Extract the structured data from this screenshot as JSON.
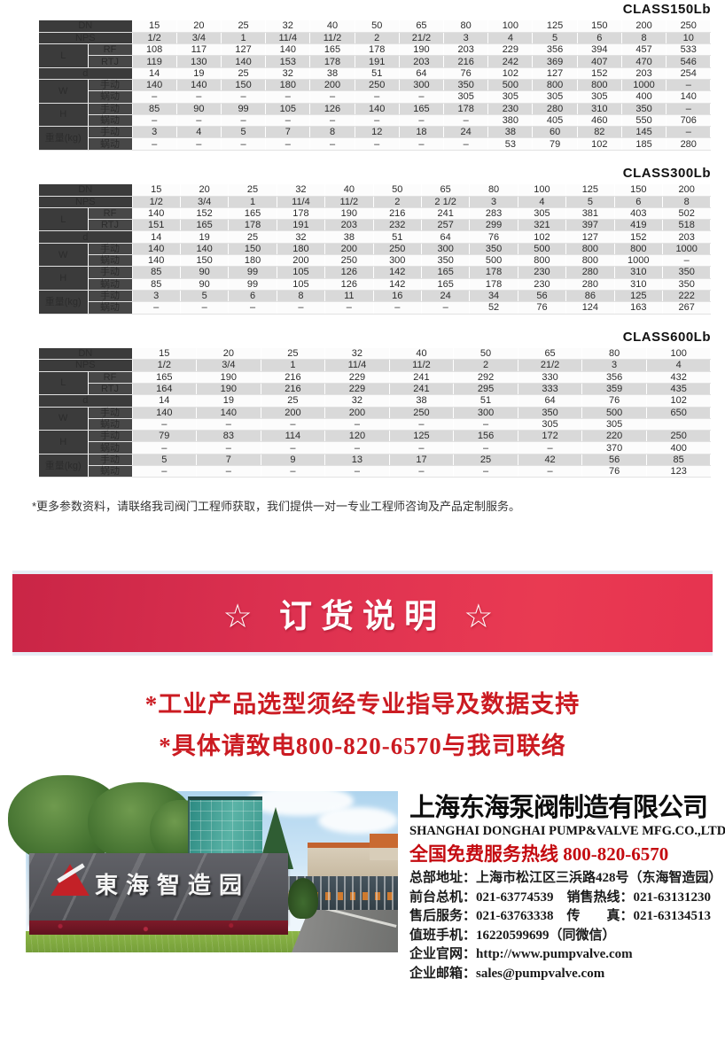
{
  "tables": [
    {
      "title": "CLASS150Lb",
      "rows": [
        {
          "label": "DN",
          "colspan2": true,
          "values": [
            "15",
            "20",
            "25",
            "32",
            "40",
            "50",
            "65",
            "80",
            "100",
            "125",
            "150",
            "200",
            "250"
          ]
        },
        {
          "label": "NPS",
          "colspan2": true,
          "values": [
            "1/2",
            "3/4",
            "1",
            "11/4",
            "11/2",
            "2",
            "21/2",
            "3",
            "4",
            "5",
            "6",
            "8",
            "10"
          ]
        },
        {
          "label": "L",
          "rowspan2": true,
          "sub": "RF",
          "values": [
            "108",
            "117",
            "127",
            "140",
            "165",
            "178",
            "190",
            "203",
            "229",
            "356",
            "394",
            "457",
            "533"
          ]
        },
        {
          "sub": "RTJ",
          "values": [
            "119",
            "130",
            "140",
            "153",
            "178",
            "191",
            "203",
            "216",
            "242",
            "369",
            "407",
            "470",
            "546"
          ]
        },
        {
          "label": "d",
          "colspan2": true,
          "values": [
            "14",
            "19",
            "25",
            "32",
            "38",
            "51",
            "64",
            "76",
            "102",
            "127",
            "152",
            "203",
            "254"
          ]
        },
        {
          "label": "W",
          "rowspan2": true,
          "sub": "手动",
          "values": [
            "140",
            "140",
            "150",
            "180",
            "200",
            "250",
            "300",
            "350",
            "500",
            "800",
            "800",
            "1000",
            "–"
          ]
        },
        {
          "sub": "蜗动",
          "values": [
            "–",
            "–",
            "–",
            "–",
            "–",
            "–",
            "–",
            "305",
            "305",
            "305",
            "305",
            "400",
            "140"
          ]
        },
        {
          "label": "H",
          "rowspan2": true,
          "sub": "手动",
          "values": [
            "85",
            "90",
            "99",
            "105",
            "126",
            "140",
            "165",
            "178",
            "230",
            "280",
            "310",
            "350",
            "–"
          ]
        },
        {
          "sub": "蜗动",
          "values": [
            "–",
            "–",
            "–",
            "–",
            "–",
            "–",
            "–",
            "–",
            "380",
            "405",
            "460",
            "550",
            "706"
          ]
        },
        {
          "label": "重量(kg)",
          "rowspan2": true,
          "sub": "手动",
          "values": [
            "3",
            "4",
            "5",
            "7",
            "8",
            "12",
            "18",
            "24",
            "38",
            "60",
            "82",
            "145",
            "–"
          ]
        },
        {
          "sub": "蜗动",
          "values": [
            "–",
            "–",
            "–",
            "–",
            "–",
            "–",
            "–",
            "–",
            "53",
            "79",
            "102",
            "185",
            "280"
          ]
        }
      ]
    },
    {
      "title": "CLASS300Lb",
      "rows": [
        {
          "label": "DN",
          "colspan2": true,
          "values": [
            "15",
            "20",
            "25",
            "32",
            "40",
            "50",
            "65",
            "80",
            "100",
            "125",
            "150",
            "200"
          ]
        },
        {
          "label": "NPS",
          "colspan2": true,
          "values": [
            "1/2",
            "3/4",
            "1",
            "11/4",
            "11/2",
            "2",
            "2 1/2",
            "3",
            "4",
            "5",
            "6",
            "8"
          ]
        },
        {
          "label": "L",
          "rowspan2": true,
          "sub": "RF",
          "values": [
            "140",
            "152",
            "165",
            "178",
            "190",
            "216",
            "241",
            "283",
            "305",
            "381",
            "403",
            "502"
          ]
        },
        {
          "sub": "RTJ",
          "values": [
            "151",
            "165",
            "178",
            "191",
            "203",
            "232",
            "257",
            "299",
            "321",
            "397",
            "419",
            "518"
          ]
        },
        {
          "label": "d",
          "colspan2": true,
          "values": [
            "14",
            "19",
            "25",
            "32",
            "38",
            "51",
            "64",
            "76",
            "102",
            "127",
            "152",
            "203"
          ]
        },
        {
          "label": "W",
          "rowspan2": true,
          "sub": "手动",
          "values": [
            "140",
            "140",
            "150",
            "180",
            "200",
            "250",
            "300",
            "350",
            "500",
            "800",
            "800",
            "1000"
          ]
        },
        {
          "sub": "蜗动",
          "values": [
            "140",
            "150",
            "180",
            "200",
            "250",
            "300",
            "350",
            "500",
            "800",
            "800",
            "1000",
            "–"
          ]
        },
        {
          "label": "H",
          "rowspan2": true,
          "sub": "手动",
          "values": [
            "85",
            "90",
            "99",
            "105",
            "126",
            "142",
            "165",
            "178",
            "230",
            "280",
            "310",
            "350"
          ]
        },
        {
          "sub": "蜗动",
          "values": [
            "85",
            "90",
            "99",
            "105",
            "126",
            "142",
            "165",
            "178",
            "230",
            "280",
            "310",
            "350"
          ]
        },
        {
          "label": "重量(kg)",
          "rowspan2": true,
          "sub": "手动",
          "values": [
            "3",
            "5",
            "6",
            "8",
            "11",
            "16",
            "24",
            "34",
            "56",
            "86",
            "125",
            "222"
          ]
        },
        {
          "sub": "蜗动",
          "values": [
            "–",
            "–",
            "–",
            "–",
            "–",
            "–",
            "–",
            "52",
            "76",
            "124",
            "163",
            "267"
          ]
        }
      ]
    },
    {
      "title": "CLASS600Lb",
      "rows": [
        {
          "label": "DN",
          "colspan2": true,
          "values": [
            "15",
            "20",
            "25",
            "32",
            "40",
            "50",
            "65",
            "80",
            "100"
          ]
        },
        {
          "label": "NPS",
          "colspan2": true,
          "values": [
            "1/2",
            "3/4",
            "1",
            "11/4",
            "11/2",
            "2",
            "21/2",
            "3",
            "4"
          ]
        },
        {
          "label": "L",
          "rowspan2": true,
          "sub": "RF",
          "values": [
            "165",
            "190",
            "216",
            "229",
            "241",
            "292",
            "330",
            "356",
            "432"
          ]
        },
        {
          "sub": "RTJ",
          "values": [
            "164",
            "190",
            "216",
            "229",
            "241",
            "295",
            "333",
            "359",
            "435"
          ]
        },
        {
          "label": "d",
          "colspan2": true,
          "values": [
            "14",
            "19",
            "25",
            "32",
            "38",
            "51",
            "64",
            "76",
            "102"
          ]
        },
        {
          "label": "W",
          "rowspan2": true,
          "sub": "手动",
          "values": [
            "140",
            "140",
            "200",
            "200",
            "250",
            "300",
            "350",
            "500",
            "650"
          ]
        },
        {
          "sub": "蜗动",
          "values": [
            "–",
            "–",
            "–",
            "–",
            "–",
            "–",
            "305",
            "305",
            ""
          ]
        },
        {
          "label": "H",
          "rowspan2": true,
          "sub": "手动",
          "values": [
            "79",
            "83",
            "114",
            "120",
            "125",
            "156",
            "172",
            "220",
            "250"
          ]
        },
        {
          "sub": "蜗动",
          "values": [
            "–",
            "–",
            "–",
            "–",
            "–",
            "–",
            "–",
            "370",
            "400"
          ]
        },
        {
          "label": "重量(kg)",
          "rowspan2": true,
          "sub": "手动",
          "values": [
            "5",
            "7",
            "9",
            "13",
            "17",
            "25",
            "42",
            "56",
            "85"
          ]
        },
        {
          "sub": "蜗动",
          "values": [
            "–",
            "–",
            "–",
            "–",
            "–",
            "–",
            "–",
            "76",
            "123"
          ]
        }
      ]
    }
  ],
  "note": "*更多参数资料，请联络我司阀门工程师获取，我们提供一对一专业工程师咨询及产品定制服务。",
  "banner": {
    "title": "☆ 订货说明 ☆",
    "bg_color_left": "#c92546",
    "bg_color_right": "#e93a52"
  },
  "slogans": {
    "line1": "*工业产品选型须经专业指导及数据支持",
    "line2": "*具体请致电800-820-6570与我司联络",
    "color": "#cb1b22"
  },
  "photo": {
    "sign_text": "東海智造园"
  },
  "company": {
    "name_cn": "上海东海泵阀制造有限公司",
    "name_en": "SHANGHAI DONGHAI PUMP&VALVE MFG.CO.,LTD.",
    "hotline_label": "全国免费服务热线",
    "hotline_number": "800-820-6570",
    "hotline_color": "#c40b10",
    "contacts": [
      "总部地址：上海市松江区三浜路428号（东海智造园）",
      "前台总机：021-63774539　销售热线：021-63131230",
      "售后服务：021-63763338　传　　真：021-63134513",
      "值班手机：16220599699（同微信）",
      "企业官网：http://www.pumpvalve.com",
      "企业邮箱：sales@pumpvalve.com"
    ]
  }
}
